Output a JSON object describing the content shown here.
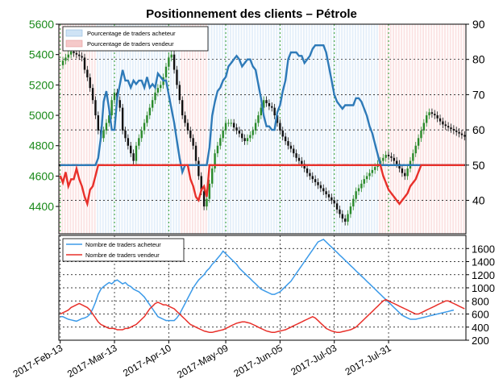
{
  "chart_data": [
    {
      "type": "line",
      "title": "Positionnement des clients – Pétrole",
      "legend": [
        "Pourcentage de traders acheteur",
        "Pourcentage de traders vendeur"
      ],
      "legend_position": "top-left",
      "grid": true,
      "y_left_ticks": [
        "4400",
        "4600",
        "4800",
        "5000",
        "5200",
        "5400",
        "5600"
      ],
      "y_left_range": [
        4220,
        5600
      ],
      "y_right_ticks": [
        "40",
        "50",
        "60",
        "70",
        "80",
        "90"
      ],
      "y_right_range": [
        30.5,
        90
      ],
      "threshold_pct": 50,
      "colors": {
        "long": "#2e7ab8",
        "short": "#e8302a",
        "candle_up": "#2a8a2a",
        "candle_down": "#111111"
      },
      "x_points": 150,
      "price_close": [
        5330,
        5360,
        5380,
        5400,
        5420,
        5410,
        5400,
        5390,
        5380,
        5300,
        5250,
        5180,
        5100,
        5000,
        4900,
        4850,
        4900,
        4950,
        5000,
        5100,
        5150,
        5100,
        5050,
        4900,
        4850,
        4800,
        4750,
        4700,
        4800,
        4850,
        4900,
        4950,
        5000,
        5050,
        5100,
        5150,
        5180,
        5200,
        5250,
        5320,
        5380,
        5400,
        5300,
        5200,
        5100,
        5000,
        4950,
        4900,
        4850,
        4800,
        4700,
        4600,
        4500,
        4400,
        4450,
        4550,
        4650,
        4750,
        4800,
        4850,
        4900,
        4950,
        4950,
        4950,
        4920,
        4900,
        4880,
        4850,
        4830,
        4850,
        4870,
        4900,
        4950,
        5000,
        5050,
        5100,
        5080,
        5060,
        5050,
        5000,
        4950,
        4900,
        4860,
        4830,
        4800,
        4780,
        4750,
        4720,
        4700,
        4680,
        4650,
        4620,
        4600,
        4580,
        4560,
        4540,
        4520,
        4500,
        4480,
        4460,
        4440,
        4420,
        4380,
        4350,
        4320,
        4300,
        4350,
        4400,
        4450,
        4500,
        4520,
        4550,
        4580,
        4600,
        4620,
        4640,
        4660,
        4680,
        4700,
        4720,
        4740,
        4730,
        4720,
        4700,
        4680,
        4650,
        4620,
        4600,
        4650,
        4700,
        4750,
        4800,
        4850,
        4900,
        4950,
        5000,
        5020,
        5010,
        5000,
        4980,
        4960,
        4940,
        4930,
        4920,
        4910,
        4900,
        4890,
        4880,
        4870,
        4860
      ],
      "series": [
        {
          "name": "Pourcentage de traders acheteur",
          "axis": "right",
          "values": [
            50,
            50,
            50,
            50,
            50,
            50,
            50,
            50,
            50,
            50,
            50,
            50,
            50,
            50,
            52,
            58,
            68,
            71,
            66,
            60,
            60,
            69,
            73,
            77,
            74,
            74,
            72,
            74,
            73,
            74,
            74,
            72,
            75,
            72,
            73,
            72,
            76,
            75,
            74,
            74,
            70,
            66,
            62,
            57,
            52,
            48,
            50,
            50,
            50,
            50,
            50,
            50,
            50,
            50,
            50,
            55,
            64,
            68,
            71,
            72,
            74,
            75,
            78,
            79,
            80,
            81,
            80,
            78,
            79,
            80,
            80,
            78,
            77,
            73,
            69,
            64,
            61,
            61,
            60,
            60,
            65,
            67,
            71,
            74,
            80,
            82,
            82,
            82,
            81,
            81,
            79,
            80,
            81,
            83,
            84,
            84,
            84,
            84,
            82,
            78,
            74,
            70,
            68,
            67,
            66,
            67,
            67,
            67,
            67,
            69,
            69,
            68,
            66,
            64,
            61,
            59,
            56,
            53,
            50,
            50,
            50,
            50,
            50,
            50,
            50,
            50,
            50,
            50,
            50,
            50,
            50,
            50,
            50,
            50,
            50,
            50,
            50,
            50,
            50,
            50,
            50,
            50,
            50,
            50,
            50,
            50,
            50,
            50,
            50,
            50
          ]
        },
        {
          "name": "Pourcentage de traders vendeur",
          "axis": "right",
          "values": [
            47,
            45,
            48,
            44,
            46,
            46,
            49,
            46,
            44,
            41,
            39,
            43,
            44,
            47,
            50,
            50,
            50,
            50,
            50,
            50,
            50,
            50,
            50,
            50,
            50,
            50,
            50,
            50,
            50,
            50,
            50,
            50,
            50,
            50,
            50,
            50,
            50,
            50,
            50,
            50,
            50,
            50,
            50,
            50,
            50,
            50,
            50,
            50,
            46,
            44,
            41,
            40,
            43,
            44,
            41,
            50,
            50,
            50,
            50,
            50,
            50,
            50,
            50,
            50,
            50,
            50,
            50,
            50,
            50,
            50,
            50,
            50,
            50,
            50,
            50,
            50,
            50,
            50,
            50,
            50,
            50,
            50,
            50,
            50,
            50,
            50,
            50,
            50,
            50,
            50,
            50,
            50,
            50,
            50,
            50,
            50,
            50,
            50,
            50,
            50,
            50,
            50,
            50,
            50,
            50,
            50,
            50,
            50,
            50,
            50,
            50,
            50,
            50,
            50,
            50,
            50,
            50,
            50,
            50,
            47,
            45,
            43,
            42,
            41,
            40,
            39,
            40,
            41,
            42,
            44,
            45,
            46,
            48,
            50,
            50,
            50,
            50,
            50,
            50,
            50,
            50,
            50,
            50,
            50,
            50,
            50,
            50,
            50,
            50,
            50
          ]
        }
      ]
    },
    {
      "type": "line",
      "legend": [
        "Nombre de traders acheteur",
        "Nombre de traders vendeur"
      ],
      "legend_position": "top-left",
      "grid": true,
      "y_ticks": [
        "200",
        "400",
        "600",
        "800",
        "1000",
        "1200",
        "1400",
        "1600"
      ],
      "ylim": [
        200,
        1800
      ],
      "x_tick_labels": [
        "2017-Feb-13",
        "2017-Mar-13",
        "2017-Apr-10",
        "2017-May-09",
        "2017-Jun-05",
        "2017-Jul-03",
        "2017-Jul-31"
      ],
      "colors": {
        "long": "#3d9be9",
        "short": "#e8302a"
      },
      "series": [
        {
          "name": "Nombre de traders acheteur",
          "values": [
            560,
            560,
            540,
            520,
            510,
            500,
            490,
            510,
            530,
            540,
            560,
            600,
            680,
            780,
            900,
            980,
            1020,
            1050,
            1080,
            1060,
            1100,
            1120,
            1090,
            1060,
            1080,
            1040,
            1020,
            980,
            960,
            940,
            900,
            860,
            800,
            740,
            680,
            620,
            560,
            540,
            520,
            500,
            500,
            500,
            500,
            540,
            600,
            680,
            760,
            840,
            920,
            1000,
            1060,
            1120,
            1160,
            1200,
            1260,
            1300,
            1360,
            1400,
            1450,
            1500,
            1560,
            1520,
            1480,
            1440,
            1400,
            1360,
            1300,
            1260,
            1220,
            1180,
            1140,
            1100,
            1060,
            1020,
            980,
            960,
            940,
            920,
            900,
            900,
            920,
            940,
            980,
            1020,
            1060,
            1100,
            1160,
            1220,
            1280,
            1340,
            1400,
            1460,
            1520,
            1580,
            1640,
            1700,
            1720,
            1740,
            1700,
            1660,
            1620,
            1580,
            1540,
            1500,
            1460,
            1420,
            1380,
            1340,
            1300,
            1260,
            1220,
            1180,
            1140,
            1100,
            1060,
            1020,
            980,
            940,
            900,
            860,
            820,
            780,
            740,
            700,
            660,
            620,
            580,
            560,
            540,
            520,
            520,
            520,
            530,
            540,
            550,
            560,
            570,
            580,
            590,
            600,
            610,
            620,
            630,
            640,
            650,
            660
          ]
        },
        {
          "name": "Nombre de traders vendeur",
          "values": [
            600,
            620,
            640,
            660,
            700,
            720,
            740,
            760,
            740,
            720,
            700,
            660,
            600,
            540,
            480,
            440,
            420,
            400,
            380,
            380,
            380,
            360,
            360,
            360,
            380,
            380,
            400,
            420,
            440,
            480,
            520,
            560,
            620,
            680,
            720,
            760,
            780,
            760,
            740,
            740,
            720,
            700,
            680,
            640,
            600,
            560,
            520,
            480,
            440,
            420,
            400,
            380,
            360,
            340,
            330,
            320,
            320,
            330,
            340,
            350,
            360,
            380,
            400,
            420,
            440,
            460,
            470,
            480,
            480,
            470,
            460,
            440,
            420,
            400,
            380,
            360,
            340,
            330,
            320,
            320,
            330,
            340,
            350,
            360,
            380,
            400,
            420,
            440,
            460,
            480,
            500,
            520,
            540,
            560,
            540,
            500,
            460,
            420,
            380,
            360,
            340,
            330,
            320,
            320,
            330,
            340,
            350,
            360,
            380,
            400,
            440,
            480,
            520,
            560,
            600,
            640,
            680,
            720,
            760,
            800,
            820,
            800,
            780,
            760,
            740,
            720,
            700,
            680,
            660,
            640,
            620,
            600,
            600,
            620,
            640,
            660,
            680,
            700,
            720,
            740,
            760,
            780,
            800,
            800,
            780,
            760,
            740,
            720,
            700,
            680
          ]
        }
      ]
    }
  ]
}
